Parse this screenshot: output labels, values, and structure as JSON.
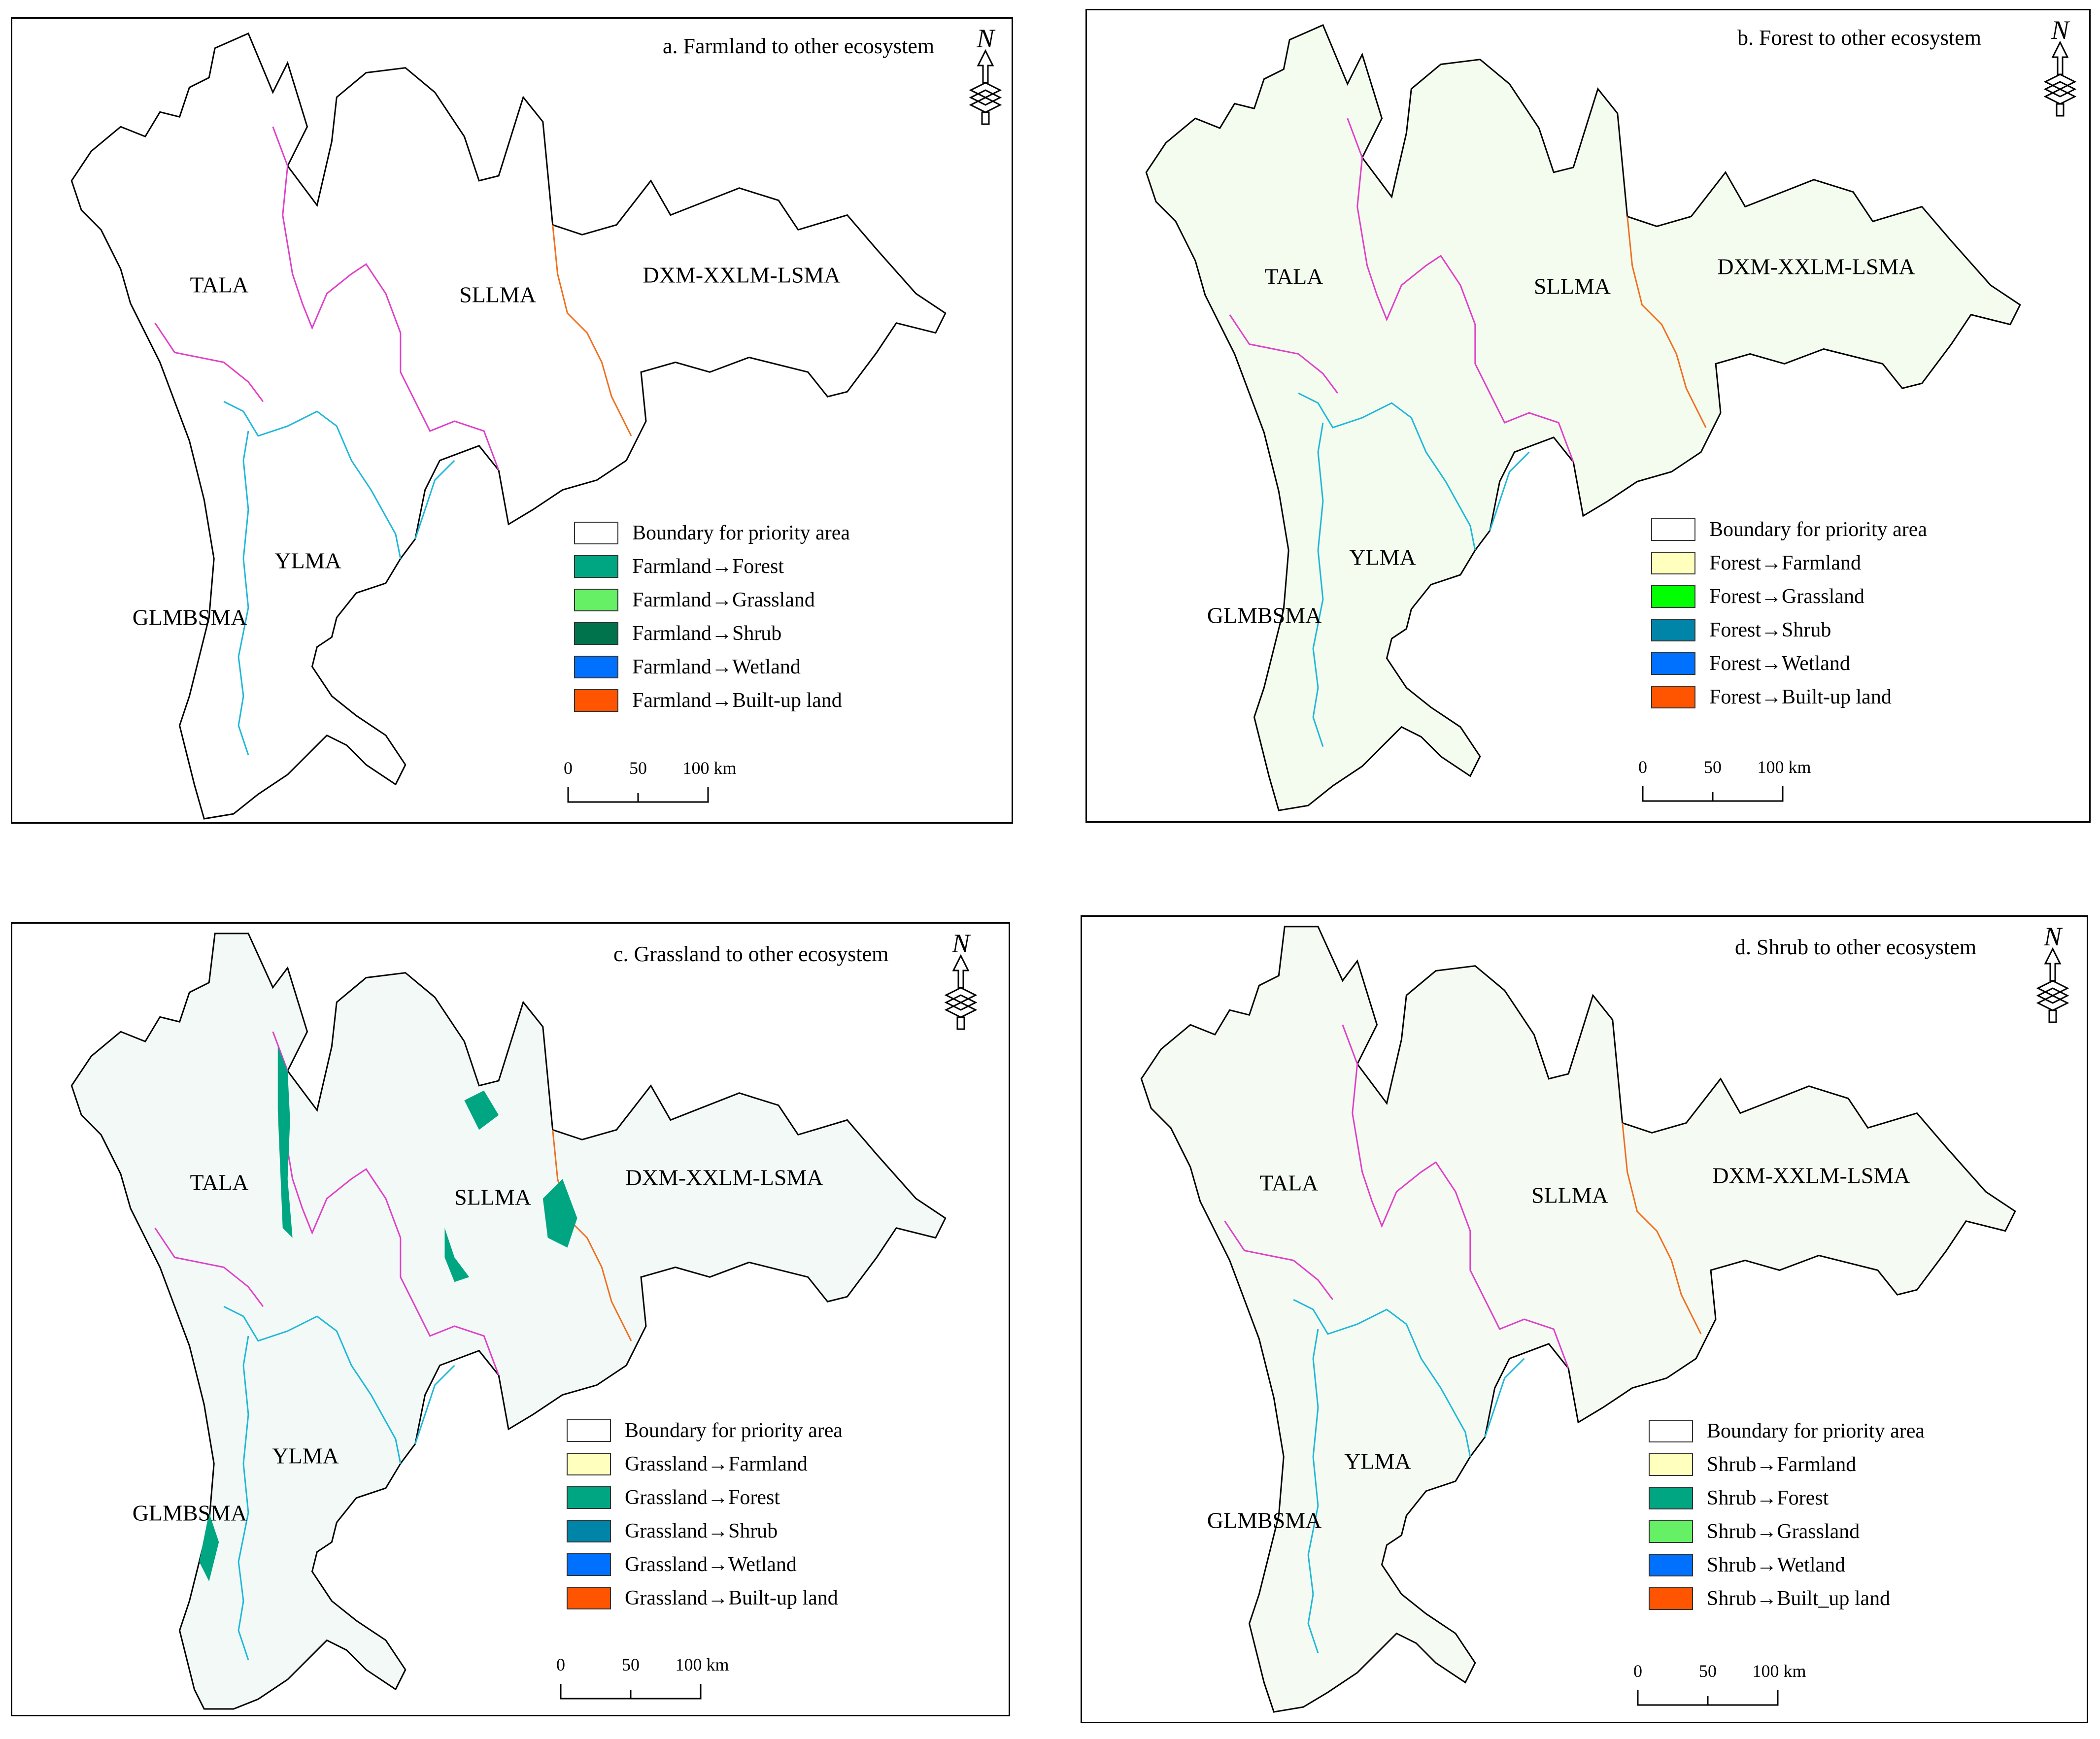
{
  "panels": [
    {
      "id": "a",
      "title": "a. Farmland to other ecosystem",
      "north_symbol": "N",
      "regions": [
        "TALA",
        "SLLMA",
        "DXM-XXLM-LSMA",
        "YLMA",
        "GLMBSMA"
      ],
      "legend": [
        {
          "label": "Boundary for priority area",
          "color": "#ffffff"
        },
        {
          "label": "Farmland→Forest",
          "color": "#00a681"
        },
        {
          "label": "Farmland→Grassland",
          "color": "#66f066"
        },
        {
          "label": "Farmland→Shrub",
          "color": "#00734c"
        },
        {
          "label": "Farmland→Wetland",
          "color": "#0070ff"
        },
        {
          "label": "Farmland→Built-up land",
          "color": "#ff5500"
        }
      ],
      "scale": [
        "0",
        "50",
        "100 km"
      ]
    },
    {
      "id": "b",
      "title": "b. Forest to other ecosystem",
      "north_symbol": "N",
      "regions": [
        "TALA",
        "SLLMA",
        "DXM-XXLM-LSMA",
        "YLMA",
        "GLMBSMA"
      ],
      "legend": [
        {
          "label": "Boundary for priority area",
          "color": "#ffffff"
        },
        {
          "label": "Forest→Farmland",
          "color": "#ffffbe"
        },
        {
          "label": "Forest→Grassland",
          "color": "#00ff00"
        },
        {
          "label": "Forest→Shrub",
          "color": "#0084a8"
        },
        {
          "label": "Forest→Wetland",
          "color": "#0070ff"
        },
        {
          "label": "Forest→Built-up land",
          "color": "#ff5500"
        }
      ],
      "scale": [
        "0",
        "50",
        "100 km"
      ]
    },
    {
      "id": "c",
      "title": "c. Grassland to other ecosystem",
      "north_symbol": "N",
      "regions": [
        "TALA",
        "SLLMA",
        "DXM-XXLM-LSMA",
        "YLMA",
        "GLMBSMA"
      ],
      "legend": [
        {
          "label": "Boundary for priority area",
          "color": "#ffffff"
        },
        {
          "label": "Grassland→Farmland",
          "color": "#ffffbe"
        },
        {
          "label": "Grassland→Forest",
          "color": "#00a681"
        },
        {
          "label": "Grassland→Shrub",
          "color": "#0084a8"
        },
        {
          "label": "Grassland→Wetland",
          "color": "#0070ff"
        },
        {
          "label": "Grassland→Built-up land",
          "color": "#ff5500"
        }
      ],
      "scale": [
        "0",
        "50",
        "100 km"
      ]
    },
    {
      "id": "d",
      "title": "d. Shrub to other ecosystem",
      "north_symbol": "N",
      "regions": [
        "TALA",
        "SLLMA",
        "DXM-XXLM-LSMA",
        "YLMA",
        "GLMBSMA"
      ],
      "legend": [
        {
          "label": "Boundary for priority area",
          "color": "#ffffff"
        },
        {
          "label": "Shrub→Farmland",
          "color": "#ffffbe"
        },
        {
          "label": "Shrub→Forest",
          "color": "#00a681"
        },
        {
          "label": "Shrub→Grassland",
          "color": "#66f066"
        },
        {
          "label": "Shrub→Wetland",
          "color": "#0070ff"
        },
        {
          "label": "Shrub→Built_up land",
          "color": "#ff5500"
        }
      ],
      "scale": [
        "0",
        "50",
        "100 km"
      ]
    }
  ],
  "boundary_colors": {
    "outline": "#000000",
    "tala_boundary": "#e040c8",
    "ylma_boundary": "#20b8d8",
    "dxm_boundary": "#f07020"
  }
}
